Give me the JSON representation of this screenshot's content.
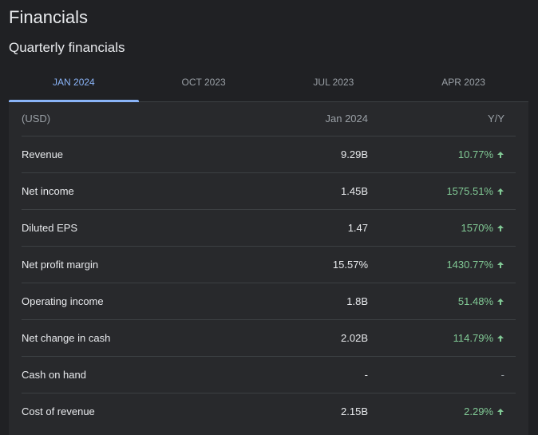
{
  "header": {
    "title": "Financials",
    "subtitle": "Quarterly financials"
  },
  "tabs": [
    {
      "label": "JAN 2024",
      "active": true
    },
    {
      "label": "OCT 2023",
      "active": false
    },
    {
      "label": "JUL 2023",
      "active": false
    },
    {
      "label": "APR 2023",
      "active": false
    }
  ],
  "table": {
    "header": {
      "label": "(USD)",
      "value": "Jan 2024",
      "yy": "Y/Y"
    },
    "rows": [
      {
        "label": "Revenue",
        "value": "9.29B",
        "yy": "10.77%",
        "trend": "up"
      },
      {
        "label": "Net income",
        "value": "1.45B",
        "yy": "1575.51%",
        "trend": "up"
      },
      {
        "label": "Diluted EPS",
        "value": "1.47",
        "yy": "1570%",
        "trend": "up"
      },
      {
        "label": "Net profit margin",
        "value": "15.57%",
        "yy": "1430.77%",
        "trend": "up"
      },
      {
        "label": "Operating income",
        "value": "1.8B",
        "yy": "51.48%",
        "trend": "up"
      },
      {
        "label": "Net change in cash",
        "value": "2.02B",
        "yy": "114.79%",
        "trend": "up"
      },
      {
        "label": "Cash on hand",
        "value": "-",
        "yy": "-",
        "trend": "none"
      },
      {
        "label": "Cost of revenue",
        "value": "2.15B",
        "yy": "2.29%",
        "trend": "up"
      }
    ]
  },
  "colors": {
    "background": "#202124",
    "panel": "#28292c",
    "accent": "#8ab4f8",
    "positive": "#81c995"
  },
  "icons": {
    "trend_up": "arrow-up-icon"
  }
}
